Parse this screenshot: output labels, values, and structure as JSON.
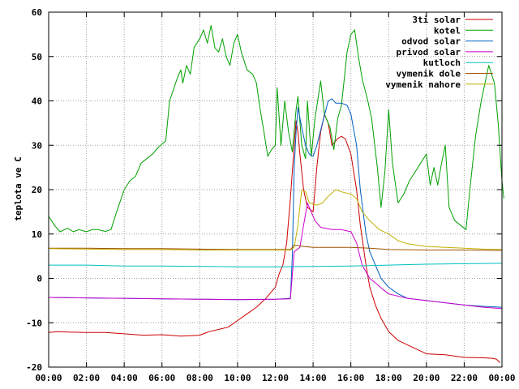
{
  "chart_data": {
    "type": "line",
    "title": "",
    "xlabel": "",
    "ylabel": "teplota ve C",
    "xlim": [
      0,
      24
    ],
    "ylim": [
      -20,
      60
    ],
    "grid": true,
    "legend_position": "top-right",
    "x_ticks": [
      0,
      2,
      4,
      6,
      8,
      10,
      12,
      14,
      16,
      18,
      20,
      22,
      24
    ],
    "x_tick_labels": [
      "00:00",
      "02:00",
      "04:00",
      "06:00",
      "08:00",
      "10:00",
      "12:00",
      "14:00",
      "16:00",
      "18:00",
      "20:00",
      "22:00",
      "00:00"
    ],
    "y_ticks": [
      -20,
      -10,
      0,
      10,
      20,
      30,
      40,
      50,
      60
    ],
    "y_tick_labels": [
      "-20",
      "-10",
      "0",
      "10",
      "20",
      "30",
      "40",
      "50",
      "60"
    ],
    "series": [
      {
        "name": "3ti solar",
        "color": "#cc0000",
        "points": [
          [
            0,
            -12.2
          ],
          [
            0.5,
            -12
          ],
          [
            1,
            -12.1
          ],
          [
            2,
            -12.2
          ],
          [
            3,
            -12.2
          ],
          [
            4,
            -12.5
          ],
          [
            5,
            -12.8
          ],
          [
            6,
            -12.7
          ],
          [
            7,
            -13
          ],
          [
            8,
            -12.8
          ],
          [
            8.5,
            -12
          ],
          [
            9,
            -11.5
          ],
          [
            9.5,
            -11
          ],
          [
            10,
            -9.5
          ],
          [
            10.5,
            -8
          ],
          [
            11,
            -6.5
          ],
          [
            11.5,
            -4.5
          ],
          [
            12,
            -2
          ],
          [
            12.2,
            1
          ],
          [
            12.4,
            3
          ],
          [
            12.6,
            8
          ],
          [
            12.8,
            18
          ],
          [
            13,
            30
          ],
          [
            13.1,
            35.5
          ],
          [
            13.2,
            33
          ],
          [
            13.3,
            28
          ],
          [
            13.5,
            20
          ],
          [
            13.7,
            16
          ],
          [
            14,
            15
          ],
          [
            14.2,
            25
          ],
          [
            14.4,
            33
          ],
          [
            14.6,
            37
          ],
          [
            14.8,
            35
          ],
          [
            15,
            30
          ],
          [
            15.3,
            31.5
          ],
          [
            15.5,
            32
          ],
          [
            15.7,
            31.5
          ],
          [
            16,
            28
          ],
          [
            16.3,
            20
          ],
          [
            16.5,
            12
          ],
          [
            16.8,
            3
          ],
          [
            17,
            -2
          ],
          [
            17.3,
            -6
          ],
          [
            17.6,
            -9
          ],
          [
            18,
            -12
          ],
          [
            18.5,
            -14
          ],
          [
            19,
            -15
          ],
          [
            19.5,
            -16
          ],
          [
            20,
            -17
          ],
          [
            21,
            -17.2
          ],
          [
            22,
            -17.8
          ],
          [
            23,
            -17.9
          ],
          [
            23.5,
            -18
          ],
          [
            23.7,
            -18.2
          ],
          [
            23.9,
            -19
          ]
        ]
      },
      {
        "name": "kotel",
        "color": "#00a000",
        "points": [
          [
            0,
            14
          ],
          [
            0.3,
            12
          ],
          [
            0.6,
            10.5
          ],
          [
            1,
            11.3
          ],
          [
            1.3,
            10.5
          ],
          [
            1.6,
            11
          ],
          [
            2,
            10.5
          ],
          [
            2.3,
            11
          ],
          [
            2.6,
            11
          ],
          [
            3,
            10.6
          ],
          [
            3.3,
            11
          ],
          [
            3.6,
            15
          ],
          [
            4,
            20
          ],
          [
            4.3,
            22
          ],
          [
            4.6,
            23
          ],
          [
            4.9,
            26
          ],
          [
            5.2,
            27
          ],
          [
            5.5,
            28
          ],
          [
            5.8,
            29.5
          ],
          [
            6.2,
            31
          ],
          [
            6.4,
            40
          ],
          [
            6.8,
            45
          ],
          [
            7,
            47
          ],
          [
            7.1,
            44
          ],
          [
            7.3,
            48
          ],
          [
            7.5,
            46
          ],
          [
            7.7,
            52
          ],
          [
            8,
            54
          ],
          [
            8.2,
            56
          ],
          [
            8.4,
            53
          ],
          [
            8.6,
            57
          ],
          [
            8.8,
            52
          ],
          [
            9,
            51
          ],
          [
            9.2,
            54
          ],
          [
            9.4,
            50
          ],
          [
            9.6,
            48
          ],
          [
            9.8,
            53
          ],
          [
            10,
            55
          ],
          [
            10.2,
            51
          ],
          [
            10.5,
            47
          ],
          [
            10.8,
            46
          ],
          [
            11,
            44
          ],
          [
            11.2,
            38
          ],
          [
            11.4,
            33
          ],
          [
            11.6,
            27.5
          ],
          [
            11.8,
            29
          ],
          [
            12.0,
            30
          ],
          [
            12.1,
            43
          ],
          [
            12.3,
            30
          ],
          [
            12.5,
            40
          ],
          [
            12.7,
            33
          ],
          [
            12.9,
            28.5
          ],
          [
            13.1,
            38
          ],
          [
            13.2,
            41
          ],
          [
            13.4,
            30
          ],
          [
            13.6,
            27
          ],
          [
            13.7,
            40
          ],
          [
            13.9,
            27.5
          ],
          [
            14.1,
            36
          ],
          [
            14.4,
            44.5
          ],
          [
            14.6,
            37
          ],
          [
            14.9,
            34
          ],
          [
            15.1,
            29
          ],
          [
            15.3,
            36
          ],
          [
            15.5,
            39
          ],
          [
            15.6,
            43
          ],
          [
            15.8,
            51
          ],
          [
            16,
            55
          ],
          [
            16.2,
            56
          ],
          [
            16.4,
            50
          ],
          [
            16.6,
            45
          ],
          [
            16.9,
            40
          ],
          [
            17.1,
            36
          ],
          [
            17.4,
            25
          ],
          [
            17.6,
            16
          ],
          [
            17.8,
            24
          ],
          [
            18.0,
            38
          ],
          [
            18.2,
            26
          ],
          [
            18.5,
            17
          ],
          [
            18.8,
            19
          ],
          [
            19.1,
            22
          ],
          [
            19.4,
            24
          ],
          [
            19.7,
            26
          ],
          [
            20,
            28
          ],
          [
            20.2,
            21
          ],
          [
            20.4,
            25
          ],
          [
            20.6,
            21
          ],
          [
            20.8,
            26
          ],
          [
            21,
            30
          ],
          [
            21.2,
            16
          ],
          [
            21.5,
            13
          ],
          [
            21.8,
            12
          ],
          [
            22.1,
            11
          ],
          [
            22.3,
            20
          ],
          [
            22.6,
            32
          ],
          [
            22.9,
            40
          ],
          [
            23.3,
            48
          ],
          [
            23.6,
            44
          ],
          [
            23.8,
            35
          ],
          [
            24,
            22
          ],
          [
            24.1,
            18
          ]
        ]
      },
      {
        "name": "odvod solar",
        "color": "#0060c0",
        "points": [
          [
            0,
            -4.3
          ],
          [
            2,
            -4.4
          ],
          [
            4,
            -4.5
          ],
          [
            6,
            -4.6
          ],
          [
            8,
            -4.7
          ],
          [
            10,
            -4.8
          ],
          [
            12,
            -4.7
          ],
          [
            12.8,
            -4.5
          ],
          [
            12.9,
            5
          ],
          [
            13,
            25
          ],
          [
            13.1,
            33
          ],
          [
            13.2,
            38.5
          ],
          [
            13.4,
            34
          ],
          [
            13.6,
            30
          ],
          [
            13.8,
            28
          ],
          [
            14,
            27.5
          ],
          [
            14.2,
            30
          ],
          [
            14.5,
            35
          ],
          [
            14.8,
            40
          ],
          [
            15,
            40.5
          ],
          [
            15.2,
            39.5
          ],
          [
            15.5,
            39.5
          ],
          [
            15.8,
            39
          ],
          [
            16,
            37
          ],
          [
            16.3,
            30
          ],
          [
            16.5,
            20
          ],
          [
            16.8,
            10
          ],
          [
            17,
            6
          ],
          [
            17.3,
            3
          ],
          [
            17.6,
            0
          ],
          [
            18,
            -2
          ],
          [
            18.5,
            -3.5
          ],
          [
            19,
            -4.5
          ],
          [
            20,
            -5
          ],
          [
            21,
            -5.5
          ],
          [
            22,
            -6
          ],
          [
            23,
            -6.3
          ],
          [
            24,
            -6.5
          ]
        ]
      },
      {
        "name": "privod solar",
        "color": "#cc00cc",
        "points": [
          [
            0,
            -4.3
          ],
          [
            2,
            -4.4
          ],
          [
            4,
            -4.5
          ],
          [
            6,
            -4.6
          ],
          [
            8,
            -4.7
          ],
          [
            10,
            -4.8
          ],
          [
            12,
            -4.7
          ],
          [
            12.8,
            -4.6
          ],
          [
            13,
            6
          ],
          [
            13.3,
            7
          ],
          [
            13.5,
            12
          ],
          [
            13.7,
            17
          ],
          [
            13.9,
            15
          ],
          [
            14.1,
            13
          ],
          [
            14.4,
            11.5
          ],
          [
            15,
            11
          ],
          [
            15.5,
            11
          ],
          [
            16,
            10.5
          ],
          [
            16.3,
            8
          ],
          [
            16.6,
            3
          ],
          [
            17,
            0
          ],
          [
            17.3,
            -1
          ],
          [
            17.7,
            -2.5
          ],
          [
            18,
            -3.5
          ],
          [
            19,
            -4.5
          ],
          [
            20,
            -5
          ],
          [
            21,
            -5.5
          ],
          [
            22,
            -6
          ],
          [
            23,
            -6.5
          ],
          [
            24,
            -6.8
          ]
        ]
      },
      {
        "name": "kutloch",
        "color": "#00c0c0",
        "points": [
          [
            0,
            3
          ],
          [
            2,
            3
          ],
          [
            4,
            2.8
          ],
          [
            6,
            2.8
          ],
          [
            8,
            2.7
          ],
          [
            10,
            2.6
          ],
          [
            12,
            2.6
          ],
          [
            14,
            2.7
          ],
          [
            16,
            2.8
          ],
          [
            18,
            3
          ],
          [
            20,
            3.2
          ],
          [
            22,
            3.3
          ],
          [
            24,
            3.4
          ]
        ]
      },
      {
        "name": "vymenik dole",
        "color": "#a05000",
        "points": [
          [
            0,
            6.8
          ],
          [
            2,
            6.8
          ],
          [
            4,
            6.7
          ],
          [
            6,
            6.7
          ],
          [
            8,
            6.6
          ],
          [
            10,
            6.5
          ],
          [
            12,
            6.5
          ],
          [
            12.8,
            6.5
          ],
          [
            13.0,
            7.5
          ],
          [
            13.5,
            7.2
          ],
          [
            14,
            7
          ],
          [
            15,
            7
          ],
          [
            16,
            7
          ],
          [
            17,
            6.8
          ],
          [
            18,
            6.5
          ],
          [
            20,
            6.4
          ],
          [
            22,
            6.4
          ],
          [
            24,
            6.3
          ]
        ]
      },
      {
        "name": "vymenik nahore",
        "color": "#c0b000",
        "points": [
          [
            0,
            6.7
          ],
          [
            2,
            6.6
          ],
          [
            4,
            6.5
          ],
          [
            6,
            6.5
          ],
          [
            8,
            6.4
          ],
          [
            10,
            6.4
          ],
          [
            12,
            6.4
          ],
          [
            12.8,
            6.4
          ],
          [
            13,
            7
          ],
          [
            13.2,
            12
          ],
          [
            13.4,
            20
          ],
          [
            13.6,
            19.5
          ],
          [
            13.8,
            17
          ],
          [
            14.2,
            16.5
          ],
          [
            14.5,
            17
          ],
          [
            14.8,
            18.5
          ],
          [
            15.2,
            20
          ],
          [
            15.5,
            19.5
          ],
          [
            16,
            19
          ],
          [
            16.3,
            18
          ],
          [
            16.6,
            15
          ],
          [
            17,
            13
          ],
          [
            17.5,
            11
          ],
          [
            18,
            10
          ],
          [
            18.5,
            8.5
          ],
          [
            19,
            7.8
          ],
          [
            20,
            7.2
          ],
          [
            21,
            7
          ],
          [
            22,
            6.8
          ],
          [
            23,
            6.6
          ],
          [
            24,
            6.5
          ]
        ]
      }
    ]
  }
}
